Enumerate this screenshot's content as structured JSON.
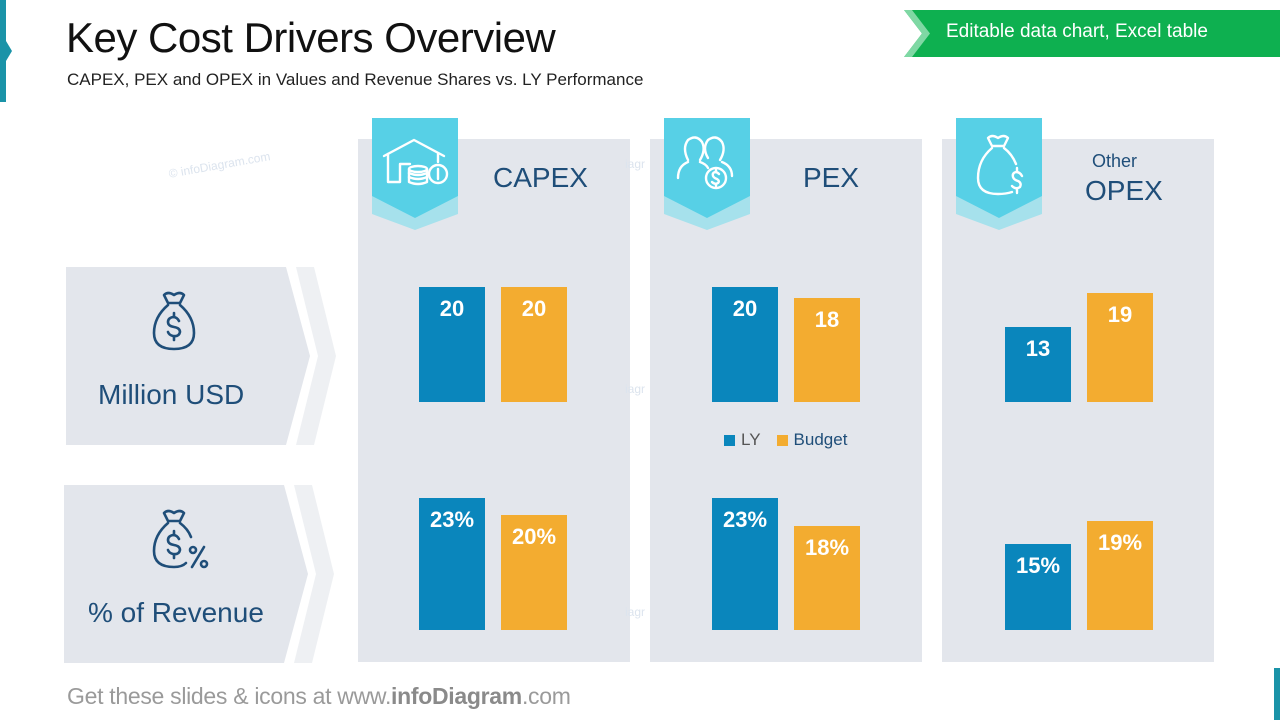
{
  "header": {
    "title": "Key Cost Drivers Overview",
    "subtitle": "CAPEX, PEX and OPEX in Values and Revenue Shares vs. LY Performance",
    "badge": "Editable data chart, Excel table"
  },
  "watermark": "© infoDiagram.com",
  "rows": [
    {
      "label": "Million USD",
      "icon": "money-bag-dollar-icon"
    },
    {
      "label": "% of Revenue",
      "icon": "money-bag-percent-icon"
    }
  ],
  "panels": [
    {
      "sublabel": "",
      "label": "CAPEX",
      "icon": "house-coins-icon"
    },
    {
      "sublabel": "",
      "label": "PEX",
      "icon": "people-dollar-icon"
    },
    {
      "sublabel": "Other",
      "label": "OPEX",
      "icon": "money-bag-icon"
    }
  ],
  "legend": {
    "ly": "LY",
    "budget": "Budget"
  },
  "footer": {
    "prefix": "Get these slides & icons at www.",
    "brand": "infoDiagram",
    "suffix": ".com"
  },
  "colors": {
    "ly": "#0a86bc",
    "budget": "#f3ac30",
    "tag": "#57d0e6",
    "text": "#1f4e79",
    "badge": "#0eb050"
  },
  "chart_data": [
    {
      "type": "bar",
      "title": "Million USD",
      "categories": [
        "CAPEX",
        "PEX",
        "Other OPEX"
      ],
      "series": [
        {
          "name": "LY",
          "values": [
            20,
            20,
            13
          ],
          "labels": [
            "20",
            "20",
            "13"
          ]
        },
        {
          "name": "Budget",
          "values": [
            20,
            18,
            19
          ],
          "labels": [
            "20",
            "18",
            "19"
          ]
        }
      ],
      "ylim": [
        0,
        20
      ],
      "grid": false,
      "legend": "center"
    },
    {
      "type": "bar",
      "title": "% of Revenue",
      "categories": [
        "CAPEX",
        "PEX",
        "Other OPEX"
      ],
      "series": [
        {
          "name": "LY",
          "values": [
            23,
            23,
            15
          ],
          "labels": [
            "23%",
            "23%",
            "15%"
          ]
        },
        {
          "name": "Budget",
          "values": [
            20,
            18,
            19
          ],
          "labels": [
            "20%",
            "18%",
            "19%"
          ]
        }
      ],
      "ylim": [
        0,
        23
      ],
      "grid": false,
      "legend": "center"
    }
  ]
}
